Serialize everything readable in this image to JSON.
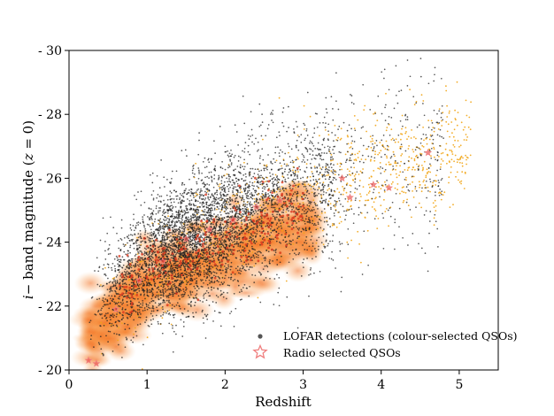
{
  "chart_data": {
    "type": "scatter",
    "title": "",
    "xlabel": "Redshift",
    "ylabel": "i− band magnitude (z = 0)",
    "ylabel_parts": {
      "var": "i",
      "mid": "− band magnitude (",
      "zvar": "z",
      "tail": " = 0)"
    },
    "xlim": [
      0,
      5.5
    ],
    "ylim": [
      -20,
      -30
    ],
    "y_inverted": true,
    "x_ticks": [
      0,
      1,
      2,
      3,
      4,
      5
    ],
    "x_tick_labels": [
      "0",
      "1",
      "2",
      "3",
      "4",
      "5"
    ],
    "y_ticks": [
      -20,
      -22,
      -24,
      -26,
      -28,
      -30
    ],
    "y_tick_labels": [
      "- 20",
      "- 22",
      "- 24",
      "- 26",
      "- 28",
      "- 30"
    ],
    "grid": false,
    "legend_position": "lower-right",
    "series": [
      {
        "name": "LOFAR detections (colour-selected QSOs)",
        "marker": "dot",
        "color": "#222222",
        "density_ridge": [
          {
            "x": 0.2,
            "y": -21.5
          },
          {
            "x": 0.5,
            "y": -22.4
          },
          {
            "x": 1.0,
            "y": -23.3
          },
          {
            "x": 1.5,
            "y": -23.9
          },
          {
            "x": 2.0,
            "y": -24.5
          },
          {
            "x": 2.5,
            "y": -25.0
          },
          {
            "x": 3.0,
            "y": -25.5
          },
          {
            "x": 3.5,
            "y": -26.0
          },
          {
            "x": 4.0,
            "y": -26.4
          },
          {
            "x": 4.5,
            "y": -26.7
          }
        ]
      },
      {
        "name": "",
        "marker": "dot",
        "color": "#f2a516",
        "note_visible_only": true,
        "density_ridge": [
          {
            "x": 0.3,
            "y": -21.3
          },
          {
            "x": 1.0,
            "y": -23.1
          },
          {
            "x": 2.0,
            "y": -24.4
          },
          {
            "x": 3.0,
            "y": -25.6
          },
          {
            "x": 3.8,
            "y": -26.1
          },
          {
            "x": 4.5,
            "y": -26.6
          },
          {
            "x": 5.3,
            "y": -26.9
          }
        ]
      },
      {
        "name": "",
        "marker": "density",
        "color": "#f26b1d",
        "density_ridge": [
          {
            "x": 0.3,
            "y": -21.2
          },
          {
            "x": 1.0,
            "y": -22.5
          },
          {
            "x": 1.5,
            "y": -23.0
          },
          {
            "x": 2.0,
            "y": -23.6
          },
          {
            "x": 2.5,
            "y": -24.0
          },
          {
            "x": 3.0,
            "y": -24.5
          }
        ]
      },
      {
        "name": "Radio selected QSOs",
        "marker": "star",
        "color": "#e8403a",
        "edge_color": "#f08080",
        "points": [
          {
            "x": 0.25,
            "y": -20.3
          },
          {
            "x": 0.35,
            "y": -20.2
          },
          {
            "x": 0.6,
            "y": -21.9
          },
          {
            "x": 0.9,
            "y": -22.8
          },
          {
            "x": 1.2,
            "y": -23.4
          },
          {
            "x": 1.5,
            "y": -24.1
          },
          {
            "x": 1.8,
            "y": -24.4
          },
          {
            "x": 2.1,
            "y": -24.7
          },
          {
            "x": 2.4,
            "y": -25.1
          },
          {
            "x": 2.7,
            "y": -25.3
          },
          {
            "x": 3.5,
            "y": -26.0
          },
          {
            "x": 3.6,
            "y": -25.4
          },
          {
            "x": 3.9,
            "y": -25.8
          },
          {
            "x": 4.1,
            "y": -25.7
          },
          {
            "x": 4.6,
            "y": -26.8
          }
        ]
      }
    ]
  },
  "legend": {
    "items": [
      {
        "label": "LOFAR detections (colour-selected QSOs)",
        "marker": "dot",
        "color": "#555555"
      },
      {
        "label": "Radio selected QSOs",
        "marker": "star",
        "color": "#f08080"
      }
    ]
  }
}
